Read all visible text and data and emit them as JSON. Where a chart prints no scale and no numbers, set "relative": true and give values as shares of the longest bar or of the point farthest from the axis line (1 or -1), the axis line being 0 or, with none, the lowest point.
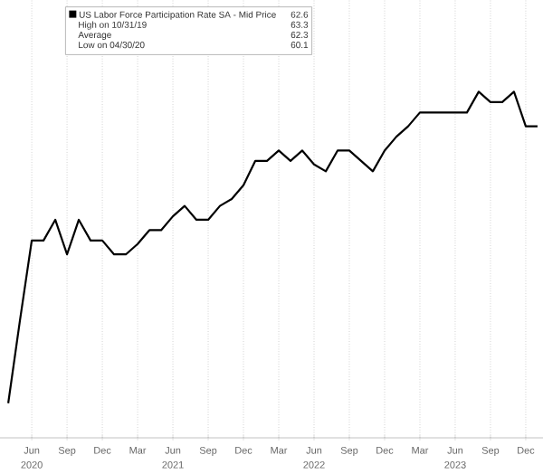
{
  "chart_data": {
    "type": "line",
    "relative": true,
    "grid": true,
    "legend": "top left",
    "marker": "none",
    "line_style": "solid",
    "x": [
      "2020-04",
      "2020-05",
      "2020-06",
      "2020-07",
      "2020-08",
      "2020-09",
      "2020-10",
      "2020-11",
      "2020-12",
      "2021-01",
      "2021-02",
      "2021-03",
      "2021-04",
      "2021-05",
      "2021-06",
      "2021-07",
      "2021-08",
      "2021-09",
      "2021-10",
      "2021-11",
      "2021-12",
      "2022-01",
      "2022-02",
      "2022-03",
      "2022-04",
      "2022-05",
      "2022-06",
      "2022-07",
      "2022-08",
      "2022-09",
      "2022-10",
      "2022-11",
      "2022-12",
      "2023-01",
      "2023-02",
      "2023-03",
      "2023-04",
      "2023-05",
      "2023-06",
      "2023-07",
      "2023-08",
      "2023-09",
      "2023-10",
      "2023-11",
      "2023-12",
      "2024-01"
    ],
    "series": [
      {
        "name": "US Labor Force Participation Rate SA - Mid Price",
        "color": "#000000",
        "values": [
          0.1,
          0.34,
          0.57,
          0.57,
          0.63,
          0.53,
          0.63,
          0.57,
          0.57,
          0.53,
          0.53,
          0.56,
          0.6,
          0.6,
          0.64,
          0.67,
          0.63,
          0.63,
          0.67,
          0.69,
          0.73,
          0.8,
          0.8,
          0.83,
          0.8,
          0.83,
          0.79,
          0.77,
          0.83,
          0.83,
          0.8,
          0.77,
          0.83,
          0.87,
          0.9,
          0.94,
          0.94,
          0.94,
          0.94,
          0.94,
          1,
          0.97,
          0.97,
          1,
          0.9,
          0.9
        ]
      }
    ],
    "xlim": [
      "2020-03-10",
      "2024-01-15"
    ],
    "xticks": [
      {
        "value": "2020-06",
        "label": "Jun"
      },
      {
        "value": "2020-09",
        "label": "Sep"
      },
      {
        "value": "2020-12",
        "label": "Dec"
      },
      {
        "value": "2021-03",
        "label": "Mar"
      },
      {
        "value": "2021-06",
        "label": "Jun"
      },
      {
        "value": "2021-09",
        "label": "Sep"
      },
      {
        "value": "2021-12",
        "label": "Dec"
      },
      {
        "value": "2022-03",
        "label": "Mar"
      },
      {
        "value": "2022-06",
        "label": "Jun"
      },
      {
        "value": "2022-09",
        "label": "Sep"
      },
      {
        "value": "2022-12",
        "label": "Dec"
      },
      {
        "value": "2023-03",
        "label": "Mar"
      },
      {
        "value": "2023-06",
        "label": "Jun"
      },
      {
        "value": "2023-09",
        "label": "Sep"
      },
      {
        "value": "2023-12",
        "label": "Dec"
      }
    ],
    "annotations": [
      "62.6",
      "High on 10/31/19",
      "63.3",
      "Average",
      "62.3",
      "Low on 04/30/20",
      "60.1",
      "2020",
      "2021",
      "2022",
      "2023"
    ]
  }
}
